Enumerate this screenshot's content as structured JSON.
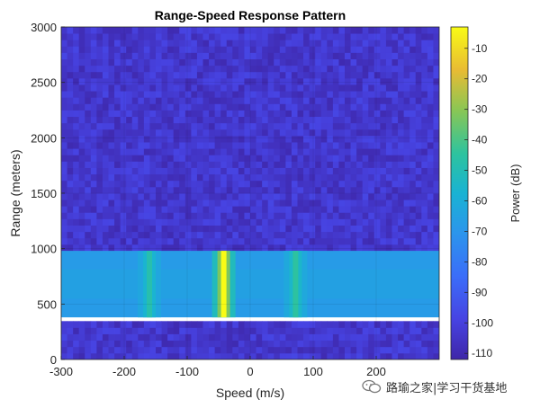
{
  "chart_data": {
    "type": "heatmap",
    "title": "Range-Speed Response Pattern",
    "xlabel": "Speed (m/s)",
    "ylabel": "Range (meters)",
    "xlim": [
      -300,
      300
    ],
    "ylim": [
      0,
      3000
    ],
    "x_ticks": [
      -300,
      -200,
      -100,
      0,
      100,
      200
    ],
    "y_ticks": [
      0,
      500,
      1000,
      1500,
      2000,
      2500,
      3000
    ],
    "colorbar": {
      "label": "Power (dB)",
      "range": [
        -112,
        -3
      ],
      "ticks": [
        -10,
        -20,
        -30,
        -40,
        -50,
        -60,
        -70,
        -80,
        -90,
        -100,
        -110
      ],
      "colormap": "parula"
    },
    "background_level_db": -104,
    "target_band": {
      "range": [
        380,
        980
      ],
      "level_db": -68,
      "center_level_db": -64
    },
    "target_peaks": [
      {
        "speed": -160,
        "power_db": -48
      },
      {
        "speed": -42,
        "power_db": -3
      },
      {
        "speed": 72,
        "power_db": -45
      }
    ],
    "grid": true
  },
  "watermark": {
    "text": "路瑜之家|学习干货基地"
  }
}
